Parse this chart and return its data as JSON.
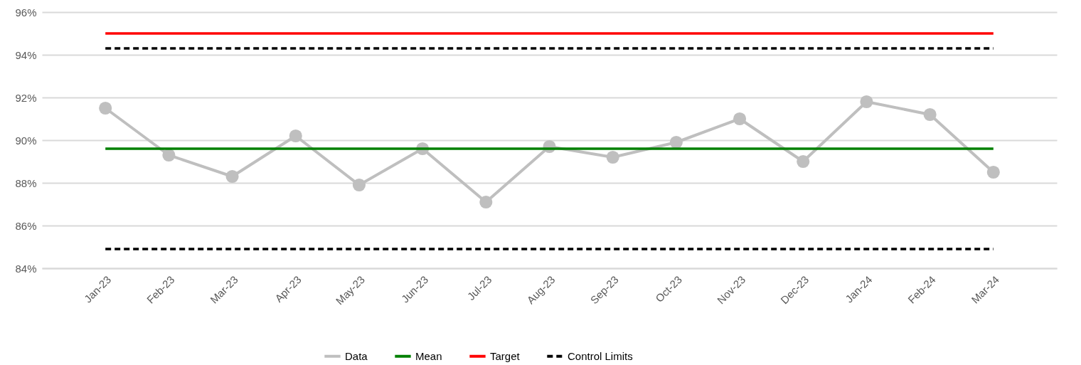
{
  "chart_data": {
    "type": "line",
    "categories": [
      "Jan-23",
      "Feb-23",
      "Mar-23",
      "Apr-23",
      "May-23",
      "Jun-23",
      "Jul-23",
      "Aug-23",
      "Sep-23",
      "Oct-23",
      "Nov-23",
      "Dec-23",
      "Jan-24",
      "Feb-24",
      "Mar-24"
    ],
    "series": [
      {
        "name": "Data",
        "color": "#bfbfbf",
        "values": [
          91.5,
          89.3,
          88.3,
          90.2,
          87.9,
          89.6,
          87.1,
          89.7,
          89.2,
          89.9,
          91.0,
          89.0,
          91.8,
          91.2,
          88.5
        ]
      }
    ],
    "ref_lines": [
      {
        "axis": "y",
        "value": 89.6,
        "label": "Mean",
        "color": "#008000",
        "line_style": "solid"
      },
      {
        "axis": "y",
        "value": 95.0,
        "label": "Target",
        "color": "#ff0000",
        "line_style": "solid"
      },
      {
        "axis": "y",
        "value": 94.3,
        "label": "Control Limits",
        "color": "#000000",
        "line_style": "dashed"
      },
      {
        "axis": "y",
        "value": 84.9,
        "color": "#000000",
        "line_style": "dashed"
      }
    ],
    "ylim": [
      84,
      96
    ],
    "yticks": [
      {
        "value": 84,
        "label": "84%"
      },
      {
        "value": 86,
        "label": "86%"
      },
      {
        "value": 88,
        "label": "88%"
      },
      {
        "value": 90,
        "label": "90%"
      },
      {
        "value": 92,
        "label": "92%"
      },
      {
        "value": 94,
        "label": "94%"
      },
      {
        "value": 96,
        "label": "96%"
      }
    ],
    "grid": "y",
    "legend": "bottom",
    "marker": "circle",
    "line_style": "solid"
  }
}
